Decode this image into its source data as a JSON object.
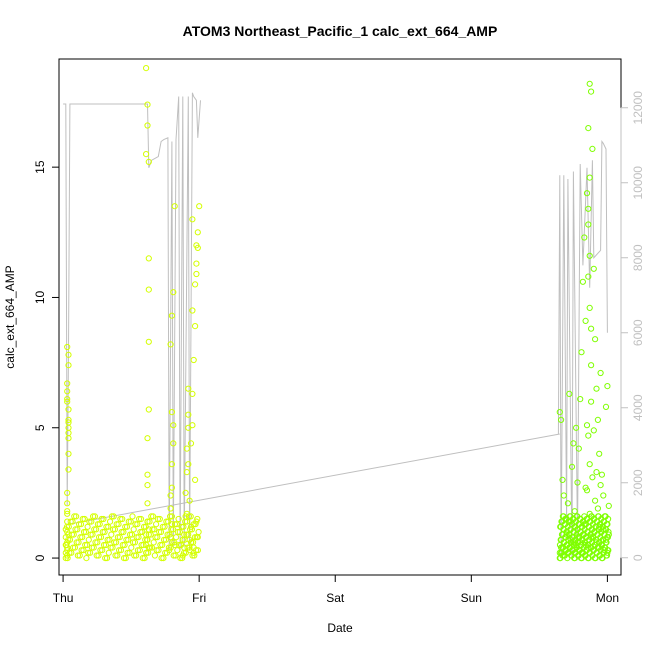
{
  "chart_data": {
    "type": "scatter",
    "title": "ATOM3 Northeast_Pacific_1 calc_ext_664_AMP",
    "xlabel": "Date",
    "ylabel": "calc_ext_664_AMP",
    "x_ticks": [
      "Thu",
      "Fri",
      "Sat",
      "Sun",
      "Mon"
    ],
    "xlim": [
      -0.03,
      4.1
    ],
    "ylim": [
      -0.65,
      19.15
    ],
    "y_ticks": [
      0,
      5,
      10,
      15
    ],
    "y2lim": [
      -460,
      13300
    ],
    "y2_ticks": [
      0,
      2000,
      4000,
      6000,
      8000,
      10000,
      12000
    ],
    "grid": false,
    "legend": "none",
    "colors": {
      "early": "#d4ff00",
      "late": "#7fff00",
      "secondary_line": "#bfbfbf",
      "axis": "#000000",
      "secondary_axis": "#c0c0c0"
    },
    "series": [
      {
        "type": "points",
        "x": [
          0.02,
          0.02,
          0.02,
          0.02,
          0.03,
          0.03,
          0.03,
          0.03,
          0.03,
          0.04,
          0.04,
          0.04,
          0.04,
          0.03,
          0.03,
          0.03,
          0.04,
          0.04,
          0.03,
          0.03,
          0.03,
          0.04,
          0.03,
          0.04,
          0.04,
          0.03,
          0.04,
          0.03,
          0.04,
          0.03,
          0.61,
          0.61,
          0.61,
          0.62,
          0.62,
          0.62,
          0.62,
          0.63,
          0.63,
          0.63,
          0.63,
          0.63,
          0.61,
          0.62,
          0.62,
          0.61,
          0.63,
          0.62,
          0.62,
          0.63,
          0.78,
          0.79,
          0.79,
          0.8,
          0.8,
          0.81,
          0.81,
          0.8,
          0.82,
          0.79,
          0.8,
          0.81,
          0.82,
          0.8,
          0.79,
          0.88,
          0.89,
          0.89,
          0.9,
          0.9,
          0.91,
          0.91,
          0.92,
          0.92,
          0.93,
          0.93,
          0.94,
          0.94,
          0.95,
          0.95,
          0.96,
          0.97,
          0.97,
          0.98,
          0.98,
          0.99,
          0.99,
          1.0,
          0.96,
          0.94,
          0.91,
          0.92,
          0.97,
          0.99,
          0.98,
          0.96,
          0.93,
          0.95,
          0.92,
          0.98,
          0.95
        ],
        "y": [
          0.2,
          0.5,
          0.8,
          1.1,
          1.4,
          1.8,
          2.1,
          0.4,
          1.0,
          4.6,
          5.0,
          5.3,
          5.7,
          6.1,
          6.4,
          6.7,
          7.4,
          7.8,
          8.1,
          0.1,
          0.6,
          4.0,
          2.5,
          3.4,
          5.2,
          1.7,
          0.9,
          0.3,
          4.8,
          6.0,
          0.2,
          0.5,
          0.9,
          1.4,
          2.1,
          3.2,
          4.6,
          5.7,
          8.3,
          10.3,
          11.5,
          15.2,
          15.5,
          16.6,
          17.4,
          18.8,
          0.4,
          0.7,
          2.8,
          1.1,
          0.3,
          0.8,
          1.9,
          2.7,
          3.6,
          4.4,
          5.1,
          5.6,
          0.5,
          8.2,
          9.3,
          10.2,
          13.5,
          1.3,
          2.4,
          0.1,
          0.4,
          0.9,
          1.6,
          2.5,
          3.3,
          4.2,
          5.0,
          5.5,
          0.3,
          0.7,
          1.2,
          4.4,
          5.1,
          6.3,
          7.6,
          8.9,
          10.5,
          10.9,
          11.3,
          11.9,
          12.5,
          13.5,
          0.2,
          0.6,
          1.7,
          3.6,
          3.0,
          0.8,
          1.4,
          0.4,
          2.2,
          9.5,
          6.5,
          12.0,
          13.0
        ]
      },
      {
        "type": "points",
        "x": [
          3.65,
          3.65,
          3.66,
          3.66,
          3.67,
          3.67,
          3.68,
          3.68,
          3.69,
          3.69,
          3.7,
          3.7,
          3.71,
          3.71,
          3.72,
          3.72,
          3.73,
          3.73,
          3.74,
          3.74,
          3.75,
          3.75,
          3.76,
          3.76,
          3.77,
          3.77,
          3.78,
          3.78,
          3.79,
          3.79,
          3.8,
          3.8,
          3.81,
          3.81,
          3.82,
          3.82,
          3.83,
          3.83,
          3.84,
          3.84,
          3.85,
          3.85,
          3.86,
          3.86,
          3.87,
          3.87,
          3.88,
          3.88,
          3.89,
          3.89,
          3.9,
          3.9,
          3.91,
          3.91,
          3.92,
          3.92,
          3.93,
          3.93,
          3.94,
          3.94,
          3.95,
          3.95,
          3.96,
          3.96,
          3.97,
          3.97,
          3.98,
          3.98,
          3.99,
          3.99,
          4.0,
          4.0,
          4.01,
          4.01,
          3.86,
          3.87,
          3.86,
          3.87,
          3.88,
          3.86,
          3.87,
          3.88,
          3.85,
          3.86,
          3.87,
          3.84,
          3.88,
          3.9,
          3.92,
          3.94
        ],
        "y": [
          0.2,
          5.6,
          0.4,
          5.3,
          0.1,
          3.0,
          0.6,
          2.4,
          0.3,
          1.5,
          0.5,
          0.9,
          0.2,
          2.1,
          0.4,
          6.3,
          0.7,
          1.4,
          0.3,
          3.5,
          0.6,
          4.4,
          0.2,
          1.8,
          0.5,
          5.0,
          0.8,
          2.9,
          0.3,
          4.2,
          0.6,
          6.1,
          0.2,
          7.9,
          0.9,
          10.6,
          1.3,
          12.3,
          0.5,
          9.1,
          2.6,
          14.0,
          0.4,
          16.5,
          1.7,
          18.2,
          0.8,
          17.9,
          3.1,
          15.7,
          0.3,
          11.1,
          2.2,
          8.4,
          0.6,
          6.5,
          1.9,
          5.3,
          0.4,
          4.0,
          2.8,
          7.1,
          0.5,
          3.2,
          1.1,
          2.4,
          0.3,
          1.6,
          0.7,
          5.8,
          0.2,
          6.6,
          0.9,
          2.0,
          12.8,
          11.6,
          10.8,
          9.6,
          7.4,
          13.4,
          14.6,
          6.0,
          5.1,
          4.7,
          3.6,
          2.7,
          8.8,
          4.9,
          3.3,
          1.2
        ]
      }
    ],
    "secondary_series": [
      {
        "x": [
          0.0,
          0.02,
          0.03,
          0.04,
          0.05,
          0.62,
          0.63,
          0.65,
          0.7,
          0.72,
          0.74,
          0.77,
          0.78,
          0.8,
          0.81,
          0.83,
          0.85,
          0.86,
          0.88,
          0.89,
          0.92,
          0.93,
          0.95,
          0.96,
          0.98,
          0.99,
          1.01
        ],
        "y": [
          12100,
          12100,
          1400,
          5500,
          12100,
          12100,
          10400,
          10600,
          10700,
          11100,
          11150,
          11200,
          200,
          11100,
          300,
          11150,
          12300,
          200,
          12300,
          300,
          12300,
          200,
          12400,
          12300,
          12200,
          11200,
          12200
        ]
      },
      {
        "x": [
          0.05,
          3.65
        ],
        "y": [
          900,
          3300
        ]
      },
      {
        "x": [
          3.64,
          3.65,
          3.66,
          3.68,
          3.7,
          3.71,
          3.74,
          3.75,
          3.78,
          3.8,
          3.82,
          3.85,
          3.87,
          3.89,
          3.9,
          3.95,
          3.96,
          3.97,
          3.99,
          4.0
        ],
        "y": [
          3300,
          10200,
          0,
          10200,
          1000,
          10100,
          0,
          10300,
          500,
          10500,
          7800,
          10400,
          7200,
          10600,
          8000,
          8200,
          11100,
          11050,
          10900,
          6000
        ]
      }
    ]
  }
}
